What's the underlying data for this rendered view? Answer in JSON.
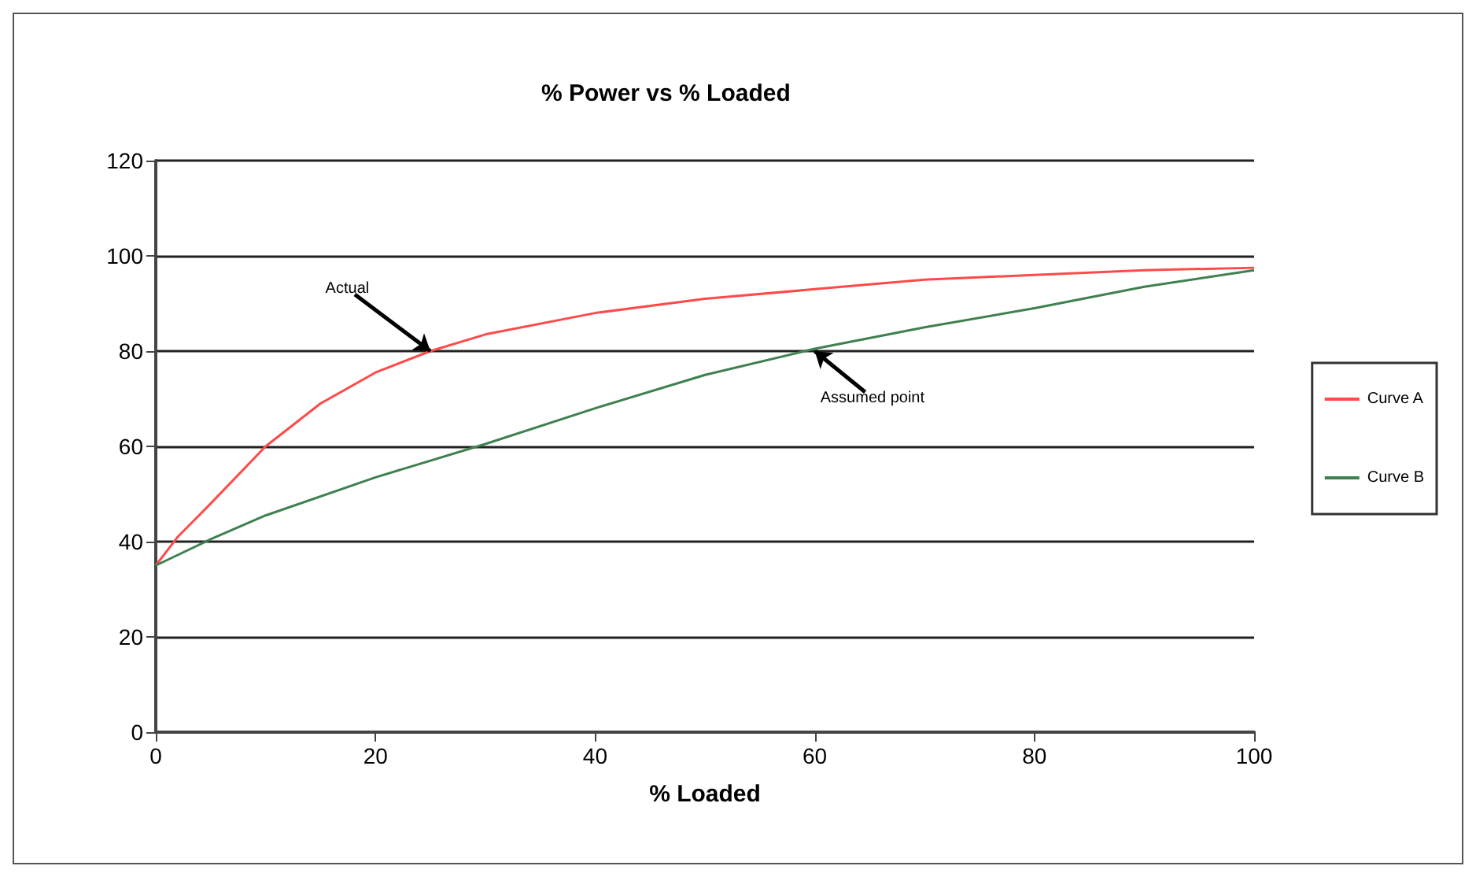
{
  "chart_data": {
    "type": "line",
    "title": "% Power vs % Loaded",
    "xlabel": "% Loaded",
    "xlim": [
      0,
      100
    ],
    "xticks": [
      0,
      20,
      40,
      60,
      80,
      100
    ],
    "ylim": [
      0,
      120
    ],
    "yticks": [
      0,
      20,
      40,
      60,
      80,
      100,
      120
    ],
    "grid": "y",
    "legend": "right",
    "marker": "none",
    "line_style": "solid",
    "series": [
      {
        "name": "Curve A",
        "color": "#ff4a4a",
        "x": [
          0,
          2,
          5,
          10,
          15,
          20,
          25,
          30,
          40,
          50,
          60,
          70,
          80,
          90,
          100
        ],
        "values": [
          35,
          41,
          48,
          60,
          69,
          75.5,
          80,
          83.5,
          88,
          91,
          93,
          95,
          96,
          97,
          97.5
        ]
      },
      {
        "name": "Curve B",
        "color": "#3f8050",
        "x": [
          0,
          5,
          10,
          20,
          30,
          40,
          50,
          60,
          70,
          80,
          90,
          100
        ],
        "values": [
          35,
          40.5,
          45.5,
          53.5,
          60.5,
          68,
          75,
          80.5,
          85,
          89,
          93.5,
          97
        ]
      }
    ],
    "annotations": [
      {
        "text": "Actual",
        "x": 25,
        "y": 80
      },
      {
        "text": "Assumed point",
        "x": 60,
        "y": 80
      }
    ]
  }
}
